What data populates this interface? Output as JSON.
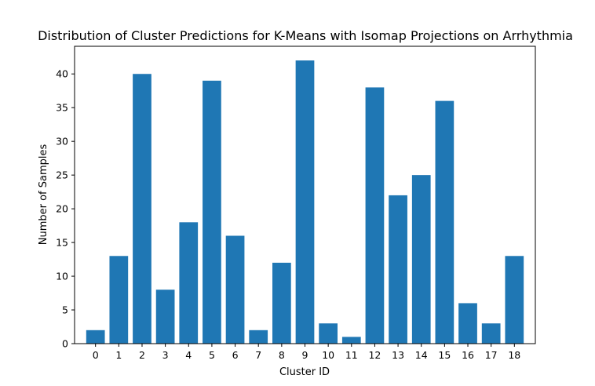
{
  "chart_data": {
    "type": "bar",
    "title": "Distribution of Cluster Predictions for K-Means with Isomap Projections on Arrhythmia",
    "xlabel": "Cluster ID",
    "ylabel": "Number of Samples",
    "categories": [
      "0",
      "1",
      "2",
      "3",
      "4",
      "5",
      "6",
      "7",
      "8",
      "9",
      "10",
      "11",
      "12",
      "13",
      "14",
      "15",
      "16",
      "17",
      "18"
    ],
    "values": [
      2,
      13,
      40,
      8,
      18,
      39,
      16,
      2,
      12,
      42,
      3,
      1,
      38,
      22,
      25,
      36,
      6,
      3,
      13
    ],
    "ylim": [
      0,
      44.1
    ],
    "yticks": [
      0,
      5,
      10,
      15,
      20,
      25,
      30,
      35,
      40
    ],
    "bar_color": "#1f77b4",
    "grid": false,
    "legend": "none"
  }
}
